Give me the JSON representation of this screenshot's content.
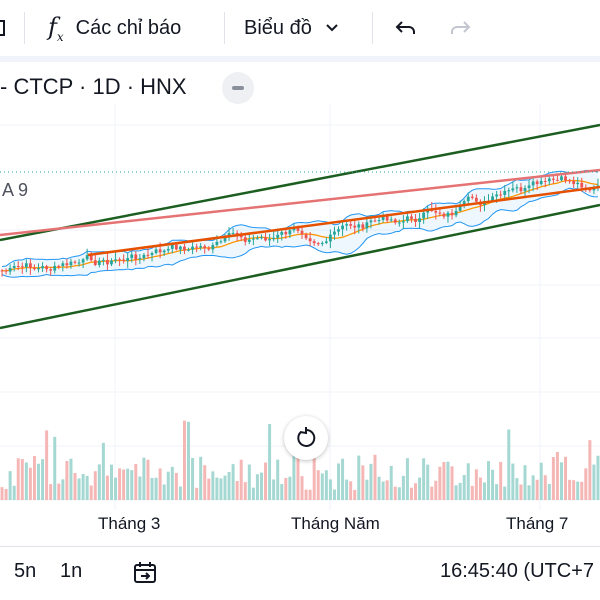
{
  "toolbar": {
    "indicators_label": "Các chỉ báo",
    "chart_type_label": "Biểu đồ"
  },
  "legend": {
    "symbol_text": "- CTCP · 1D · HNX",
    "indicator_text": "A 9"
  },
  "xaxis": {
    "labels": [
      "Tháng 3",
      "Tháng Năm",
      "Tháng 7"
    ]
  },
  "bottom_bar": {
    "ranges": [
      "5n",
      "1n"
    ],
    "time": "16:45:40 (UTC+7"
  },
  "icons": [
    "fx-icon",
    "chevron-down-icon",
    "undo-icon",
    "redo-icon",
    "minus-icon",
    "reset-icon",
    "calendar-goto-icon"
  ],
  "colors": {
    "up": "#26a69a",
    "down": "#ef5350",
    "trend_green": "#1b5e20",
    "trend_orange": "#e65100",
    "trend_pink": "#e57373",
    "bollinger": "#2196f3",
    "ma": "#ff9800"
  }
}
